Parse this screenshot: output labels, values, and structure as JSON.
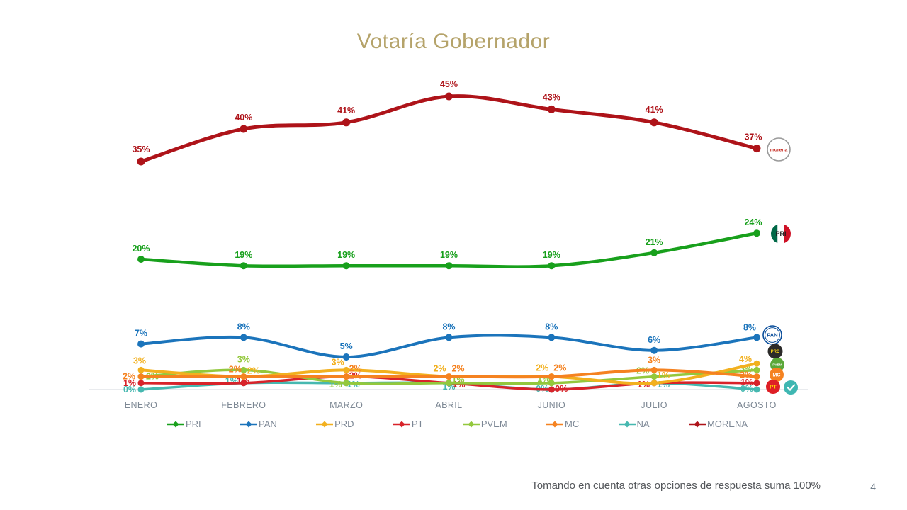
{
  "title": "Votaría Gobernador",
  "footnote": "Tomando en cuenta otras opciones de respuesta suma 100%",
  "page_number": "4",
  "chart_data": {
    "type": "line",
    "categories": [
      "ENERO",
      "FEBRERO",
      "MARZO",
      "ABRIL",
      "JUNIO",
      "JULIO",
      "AGOSTO"
    ],
    "ylim": [
      0,
      50
    ],
    "grid": false,
    "legend_position": "bottom",
    "point_label_format": "{value}%",
    "series": [
      {
        "name": "PRI",
        "color": "#18A01C",
        "values": [
          20,
          19,
          19,
          19,
          19,
          21,
          24
        ]
      },
      {
        "name": "PAN",
        "color": "#1B74BB",
        "values": [
          7,
          8,
          5,
          8,
          8,
          6,
          8
        ]
      },
      {
        "name": "PRD",
        "color": "#F2B01E",
        "values": [
          3,
          2,
          3,
          2,
          2,
          1,
          4
        ]
      },
      {
        "name": "PT",
        "color": "#D8232A",
        "values": [
          1,
          1,
          2,
          1,
          0,
          1,
          1
        ]
      },
      {
        "name": "PVEM",
        "color": "#93C83D",
        "values": [
          2,
          3,
          1,
          1,
          1,
          2,
          3
        ]
      },
      {
        "name": "MC",
        "color": "#F58220",
        "values": [
          2,
          2,
          2,
          2,
          2,
          3,
          2
        ]
      },
      {
        "name": "NA",
        "color": "#46B8B0",
        "values": [
          0,
          1,
          1,
          1,
          0,
          1,
          0
        ]
      },
      {
        "name": "MORENA",
        "color": "#AE1319",
        "values": [
          35,
          40,
          41,
          45,
          43,
          41,
          37
        ]
      }
    ]
  },
  "party_logos": [
    {
      "id": "morena",
      "series": "MORENA",
      "text": "morena",
      "bg": "#FFFFFF",
      "fg": "#C3261C",
      "border": "#9A9A9A"
    },
    {
      "id": "pri",
      "series": "PRI",
      "text": "PRI",
      "bg": "tricolor",
      "fg": "#1A1A1A",
      "border": "#CE1126"
    },
    {
      "id": "pan",
      "series": "PAN",
      "text": "PAN",
      "bg": "#FFFFFF",
      "fg": "#0A4E9B",
      "border": "#0A4E9B"
    },
    {
      "id": "prd",
      "series": "PRD",
      "text": "PRD",
      "bg": "#2B2A29",
      "fg": "#F7D117",
      "border": "#2B2A29"
    },
    {
      "id": "pvem",
      "series": "PVEM",
      "text": "PVEM",
      "bg": "#5BA839",
      "fg": "#FFFFFF",
      "border": "#5BA839"
    },
    {
      "id": "mc",
      "series": "MC",
      "text": "MC",
      "bg": "#F58220",
      "fg": "#FFFFFF",
      "border": "#F58220"
    },
    {
      "id": "pt",
      "series": "PT",
      "text": "PT",
      "bg": "#DE1F26",
      "fg": "#FFD200",
      "border": "#DE1F26"
    },
    {
      "id": "na",
      "series": "NA",
      "text": "check",
      "bg": "#3FB7B2",
      "fg": "#FFFFFF",
      "border": "#3FB7B2"
    }
  ]
}
